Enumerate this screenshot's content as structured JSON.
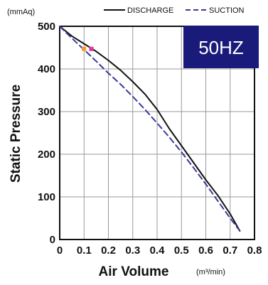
{
  "chart_data": {
    "type": "line",
    "title": "",
    "badge": "50HZ",
    "xlabel": "Air Volume",
    "xunit": "(m³/min)",
    "ylabel": "Static Pressure",
    "yunit": "(mmAq)",
    "xlim": [
      0,
      0.8
    ],
    "ylim": [
      0,
      500
    ],
    "xticks": [
      "0",
      "0.1",
      "0.2",
      "0.3",
      "0.4",
      "0.5",
      "0.6",
      "0.7",
      "0.8"
    ],
    "yticks": [
      "0",
      "100",
      "200",
      "300",
      "400",
      "500"
    ],
    "grid": true,
    "legend_position": "top-right",
    "series": [
      {
        "name": "DISCHARGE",
        "style": "solid",
        "color": "#111111",
        "x": [
          0,
          0.05,
          0.1,
          0.15,
          0.2,
          0.25,
          0.3,
          0.35,
          0.4,
          0.45,
          0.5,
          0.55,
          0.6,
          0.65,
          0.7,
          0.74
        ],
        "y": [
          500,
          477,
          459,
          441,
          420,
          397,
          370,
          341,
          305,
          260,
          220,
          180,
          140,
          103,
          60,
          20
        ]
      },
      {
        "name": "SUCTION",
        "style": "dashed",
        "color": "#3a3a9a",
        "x": [
          0,
          0.05,
          0.1,
          0.15,
          0.2,
          0.25,
          0.3,
          0.35,
          0.4,
          0.45,
          0.5,
          0.55,
          0.6,
          0.65,
          0.7,
          0.74
        ],
        "y": [
          500,
          472,
          445,
          418,
          390,
          364,
          335,
          305,
          273,
          240,
          205,
          168,
          130,
          90,
          50,
          20
        ]
      }
    ],
    "markers": [
      {
        "x": 0.1,
        "y": 447,
        "color": "#f39a2a"
      },
      {
        "x": 0.13,
        "y": 447,
        "color": "#e0329a"
      }
    ]
  },
  "colors": {
    "badge_bg": "#1a1a7a",
    "grid": "#9a9a9a",
    "frame": "#111111"
  }
}
